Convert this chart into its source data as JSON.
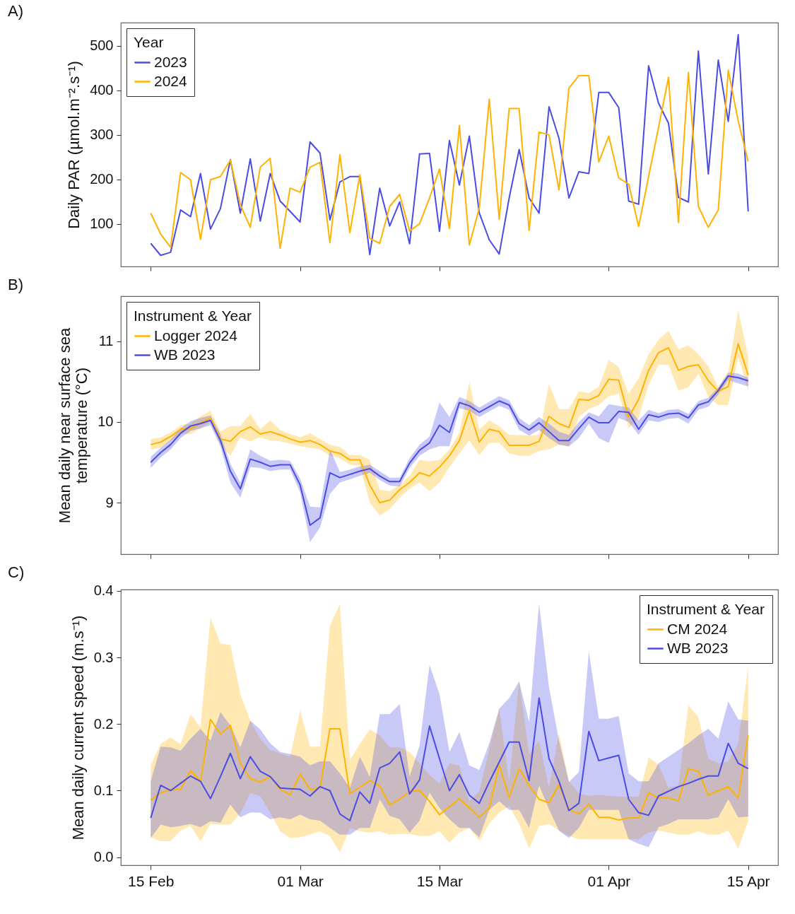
{
  "chart_data": [
    {
      "type": "line",
      "title": "A)",
      "ylabel": "Daily PAR (µmol.m⁻².s⁻¹)",
      "legend_title": "Year",
      "legend": "top left",
      "tick_labels": "y",
      "x": [
        "--02-15",
        "--02-16",
        "--02-17",
        "--02-18",
        "--02-19",
        "--02-20",
        "--02-21",
        "--02-22",
        "--02-23",
        "--02-24",
        "--02-25",
        "--02-26",
        "--02-27",
        "--02-28",
        "--02-29",
        "--03-01",
        "--03-02",
        "--03-03",
        "--03-04",
        "--03-05",
        "--03-06",
        "--03-07",
        "--03-08",
        "--03-09",
        "--03-10",
        "--03-11",
        "--03-12",
        "--03-13",
        "--03-14",
        "--03-15",
        "--03-16",
        "--03-17",
        "--03-18",
        "--03-19",
        "--03-20",
        "--03-21",
        "--03-22",
        "--03-23",
        "--03-24",
        "--03-25",
        "--03-26",
        "--03-27",
        "--03-28",
        "--03-29",
        "--03-30",
        "--03-31",
        "--04-01",
        "--04-02",
        "--04-03",
        "--04-04",
        "--04-05",
        "--04-06",
        "--04-07",
        "--04-08",
        "--04-09",
        "--04-10",
        "--04-11",
        "--04-12",
        "--04-13",
        "--04-14",
        "--04-15"
      ],
      "xlim": [
        "--02-12",
        "--04-18"
      ],
      "xticks": [
        {
          "value": "--02-15",
          "label": "15 Feb"
        },
        {
          "value": "--03-01",
          "label": "01 Mar"
        },
        {
          "value": "--03-15",
          "label": "15 Mar"
        },
        {
          "value": "--04-01",
          "label": "01 Apr"
        },
        {
          "value": "--04-15",
          "label": "15 Apr"
        }
      ],
      "ylim": [
        4,
        552
      ],
      "yticks": [
        100,
        200,
        300,
        400,
        500
      ],
      "series": [
        {
          "name": "2023",
          "color": "#4b4be6",
          "values": [
            56,
            29,
            36,
            131,
            116,
            213,
            88,
            134,
            244,
            124,
            246,
            106,
            213,
            151,
            128,
            104,
            284,
            259,
            109,
            194,
            206,
            206,
            31,
            180,
            95,
            149,
            55,
            257,
            258,
            83,
            287,
            187,
            297,
            124,
            64,
            32,
            158,
            267,
            158,
            124,
            363,
            292,
            158,
            217,
            213,
            395,
            395,
            361,
            151,
            144,
            455,
            371,
            326,
            159,
            149,
            488,
            212,
            468,
            330,
            525,
            128
          ]
        },
        {
          "name": "2024",
          "color": "#ffb300",
          "values": [
            124,
            77,
            47,
            215,
            199,
            65,
            199,
            206,
            243,
            143,
            92,
            227,
            247,
            45,
            180,
            171,
            227,
            238,
            58,
            255,
            80,
            210,
            67,
            56,
            139,
            166,
            84,
            100,
            158,
            223,
            89,
            321,
            52,
            136,
            380,
            110,
            359,
            359,
            85,
            306,
            300,
            176,
            405,
            433,
            433,
            239,
            297,
            203,
            189,
            94,
            206,
            317,
            429,
            103,
            440,
            139,
            92,
            131,
            445,
            331,
            240
          ]
        }
      ]
    },
    {
      "type": "line",
      "title": "B)",
      "ylabel": "Mean daily near surface sea\ntemperature (°C)",
      "legend_title": "Instrument & Year",
      "legend": "top left",
      "tick_labels": "y",
      "x": [
        "--02-15",
        "--02-16",
        "--02-17",
        "--02-18",
        "--02-19",
        "--02-20",
        "--02-21",
        "--02-22",
        "--02-23",
        "--02-24",
        "--02-25",
        "--02-26",
        "--02-27",
        "--02-28",
        "--02-29",
        "--03-01",
        "--03-02",
        "--03-03",
        "--03-04",
        "--03-05",
        "--03-06",
        "--03-07",
        "--03-08",
        "--03-09",
        "--03-10",
        "--03-11",
        "--03-12",
        "--03-13",
        "--03-14",
        "--03-15",
        "--03-16",
        "--03-17",
        "--03-18",
        "--03-19",
        "--03-20",
        "--03-21",
        "--03-22",
        "--03-23",
        "--03-24",
        "--03-25",
        "--03-26",
        "--03-27",
        "--03-28",
        "--03-29",
        "--03-30",
        "--03-31",
        "--04-01",
        "--04-02",
        "--04-03",
        "--04-04",
        "--04-05",
        "--04-06",
        "--04-07",
        "--04-08",
        "--04-09",
        "--04-10",
        "--04-11",
        "--04-12",
        "--04-13",
        "--04-14",
        "--04-15"
      ],
      "xlim": [
        "--02-12",
        "--04-18"
      ],
      "xticks": [
        {
          "value": "--02-15",
          "label": "15 Feb"
        },
        {
          "value": "--03-01",
          "label": "01 Mar"
        },
        {
          "value": "--03-15",
          "label": "15 Mar"
        },
        {
          "value": "--04-01",
          "label": "01 Apr"
        },
        {
          "value": "--04-15",
          "label": "15 Apr"
        }
      ],
      "ylim": [
        8.36,
        11.56
      ],
      "yticks": [
        9,
        10,
        11
      ],
      "series": [
        {
          "name": "Logger 2024",
          "color": "#ffb300",
          "values": [
            9.72,
            9.75,
            9.82,
            9.91,
            9.92,
            9.99,
            10.05,
            9.79,
            9.76,
            9.88,
            9.94,
            9.85,
            9.88,
            9.84,
            9.79,
            9.75,
            9.77,
            9.72,
            9.64,
            9.61,
            9.53,
            9.53,
            9.22,
            9.0,
            9.03,
            9.16,
            9.25,
            9.37,
            9.33,
            9.44,
            9.58,
            9.77,
            10.14,
            9.75,
            9.91,
            9.88,
            9.71,
            9.71,
            9.71,
            9.76,
            10.07,
            9.98,
            9.93,
            10.28,
            10.27,
            10.33,
            10.53,
            10.52,
            10.06,
            10.28,
            10.64,
            10.86,
            10.92,
            10.64,
            10.69,
            10.71,
            10.51,
            10.38,
            10.44,
            10.97,
            10.58
          ],
          "upper": [
            9.79,
            9.81,
            9.87,
            9.96,
            9.98,
            10.07,
            10.14,
            9.88,
            9.95,
            9.95,
            10.1,
            9.91,
            10.02,
            9.9,
            9.85,
            9.81,
            9.86,
            9.79,
            9.72,
            9.69,
            9.59,
            9.59,
            9.53,
            9.16,
            9.14,
            9.22,
            9.33,
            9.53,
            9.51,
            9.53,
            9.66,
            9.87,
            10.5,
            9.91,
            10.02,
            9.95,
            9.84,
            9.84,
            9.83,
            9.84,
            10.47,
            10.16,
            10.16,
            10.38,
            10.36,
            10.44,
            10.77,
            10.68,
            10.35,
            10.54,
            10.84,
            11.02,
            11.13,
            10.9,
            10.95,
            10.84,
            10.69,
            10.43,
            10.62,
            11.39,
            10.81
          ],
          "lower": [
            9.66,
            9.68,
            9.76,
            9.85,
            9.85,
            9.92,
            10.0,
            9.72,
            9.58,
            9.81,
            9.76,
            9.81,
            9.77,
            9.76,
            9.73,
            9.7,
            9.68,
            9.66,
            9.58,
            9.55,
            9.47,
            9.46,
            9.0,
            8.84,
            8.92,
            9.06,
            9.17,
            9.25,
            9.14,
            9.25,
            9.44,
            9.61,
            9.77,
            9.59,
            9.74,
            9.74,
            9.61,
            9.58,
            9.58,
            9.64,
            9.66,
            9.72,
            9.69,
            10.06,
            10.16,
            10.21,
            10.32,
            10.35,
            9.92,
            10.05,
            10.46,
            10.71,
            10.71,
            10.39,
            10.43,
            10.6,
            10.31,
            10.21,
            10.21,
            10.81,
            10.39
          ]
        },
        {
          "name": "WB 2023",
          "color": "#4b4be6",
          "values": [
            9.5,
            9.62,
            9.72,
            9.86,
            9.95,
            9.98,
            10.02,
            9.77,
            9.39,
            9.17,
            9.54,
            9.5,
            9.45,
            9.47,
            9.47,
            9.22,
            8.72,
            8.81,
            9.37,
            9.31,
            9.35,
            9.39,
            9.42,
            9.33,
            9.26,
            9.26,
            9.49,
            9.65,
            9.74,
            9.96,
            9.87,
            10.24,
            10.2,
            10.12,
            10.19,
            10.26,
            10.21,
            9.98,
            9.9,
            9.99,
            9.88,
            9.77,
            9.77,
            9.92,
            10.06,
            9.99,
            9.99,
            10.13,
            10.12,
            9.91,
            10.09,
            10.06,
            10.1,
            10.11,
            10.05,
            10.21,
            10.25,
            10.39,
            10.57,
            10.55,
            10.51
          ],
          "upper": [
            9.57,
            9.68,
            9.78,
            9.92,
            10.01,
            10.05,
            10.08,
            9.85,
            9.48,
            9.25,
            9.66,
            9.58,
            9.52,
            9.53,
            9.52,
            9.3,
            8.95,
            8.94,
            9.66,
            9.38,
            9.41,
            9.45,
            9.47,
            9.39,
            9.31,
            9.31,
            9.55,
            9.72,
            9.82,
            10.24,
            10.06,
            10.31,
            10.26,
            10.18,
            10.25,
            10.32,
            10.27,
            10.05,
            9.96,
            10.06,
            9.98,
            9.88,
            9.84,
            10.0,
            10.12,
            10.07,
            10.22,
            10.2,
            10.18,
            10.02,
            10.15,
            10.11,
            10.15,
            10.16,
            10.1,
            10.26,
            10.3,
            10.43,
            10.61,
            10.6,
            10.55
          ],
          "lower": [
            9.43,
            9.56,
            9.66,
            9.8,
            9.89,
            9.92,
            9.96,
            9.7,
            9.25,
            9.06,
            9.44,
            9.43,
            9.39,
            9.41,
            9.41,
            9.13,
            8.51,
            8.69,
            9.11,
            9.25,
            9.29,
            9.33,
            9.37,
            9.28,
            9.21,
            9.2,
            9.43,
            9.58,
            9.66,
            9.7,
            9.7,
            10.17,
            10.14,
            10.06,
            10.13,
            10.2,
            10.15,
            9.9,
            9.83,
            9.9,
            9.8,
            9.72,
            9.7,
            9.8,
            9.98,
            9.8,
            9.74,
            10.05,
            10.0,
            9.84,
            10.02,
            10.0,
            10.04,
            10.05,
            9.98,
            10.15,
            10.19,
            10.34,
            10.52,
            10.48,
            10.44
          ]
        }
      ]
    },
    {
      "type": "line",
      "title": "C)",
      "ylabel": "Mean daily current speed (m.s⁻¹)",
      "legend_title": "Instrument & Year",
      "legend": "top right",
      "x": [
        "--02-15",
        "--02-16",
        "--02-17",
        "--02-18",
        "--02-19",
        "--02-20",
        "--02-21",
        "--02-22",
        "--02-23",
        "--02-24",
        "--02-25",
        "--02-26",
        "--02-27",
        "--02-28",
        "--02-29",
        "--03-01",
        "--03-02",
        "--03-03",
        "--03-04",
        "--03-05",
        "--03-06",
        "--03-07",
        "--03-08",
        "--03-09",
        "--03-10",
        "--03-11",
        "--03-12",
        "--03-13",
        "--03-14",
        "--03-15",
        "--03-16",
        "--03-17",
        "--03-18",
        "--03-19",
        "--03-20",
        "--03-21",
        "--03-22",
        "--03-23",
        "--03-24",
        "--03-25",
        "--03-26",
        "--03-27",
        "--03-28",
        "--03-29",
        "--03-30",
        "--03-31",
        "--04-01",
        "--04-02",
        "--04-03",
        "--04-04",
        "--04-05",
        "--04-06",
        "--04-07",
        "--04-08",
        "--04-09",
        "--04-10",
        "--04-11",
        "--04-12",
        "--04-13",
        "--04-14",
        "--04-15"
      ],
      "xlim": [
        "--02-12",
        "--04-18"
      ],
      "xticks": [
        {
          "value": "--02-15",
          "label": "15 Feb"
        },
        {
          "value": "--03-01",
          "label": "01 Mar"
        },
        {
          "value": "--03-15",
          "label": "15 Mar"
        },
        {
          "value": "--04-01",
          "label": "01 Apr"
        },
        {
          "value": "--04-15",
          "label": "15 Apr"
        }
      ],
      "ylim": [
        -0.012,
        0.402
      ],
      "yticks": [
        {
          "value": 0,
          "label": "0.0"
        },
        0.1,
        0.2,
        0.3,
        0.4
      ],
      "series": [
        {
          "name": "CM 2024",
          "color": "#ffb300",
          "values": [
            0.086,
            0.097,
            0.101,
            0.102,
            0.13,
            0.114,
            0.207,
            0.185,
            0.198,
            0.141,
            0.118,
            0.113,
            0.121,
            0.102,
            0.094,
            0.125,
            0.102,
            0.104,
            0.193,
            0.193,
            0.096,
            0.105,
            0.115,
            0.107,
            0.079,
            0.087,
            0.099,
            0.1,
            0.084,
            0.064,
            0.076,
            0.088,
            0.074,
            0.06,
            0.074,
            0.138,
            0.09,
            0.133,
            0.108,
            0.087,
            0.082,
            0.109,
            0.072,
            0.065,
            0.08,
            0.06,
            0.06,
            0.056,
            0.059,
            0.059,
            0.097,
            0.089,
            0.089,
            0.085,
            0.133,
            0.129,
            0.093,
            0.1,
            0.106,
            0.089,
            0.183
          ],
          "upper": [
            0.138,
            0.17,
            0.18,
            0.17,
            0.215,
            0.195,
            0.36,
            0.321,
            0.319,
            0.245,
            0.205,
            0.178,
            0.161,
            0.156,
            0.151,
            0.22,
            0.166,
            0.166,
            0.348,
            0.38,
            0.146,
            0.17,
            0.192,
            0.183,
            0.165,
            0.165,
            0.158,
            0.141,
            0.124,
            0.111,
            0.141,
            0.138,
            0.084,
            0.099,
            0.163,
            0.223,
            0.114,
            0.265,
            0.155,
            0.175,
            0.104,
            0.186,
            0.114,
            0.096,
            0.092,
            0.094,
            0.092,
            0.091,
            0.091,
            0.091,
            0.15,
            0.139,
            0.104,
            0.108,
            0.228,
            0.21,
            0.148,
            0.141,
            0.144,
            0.171,
            0.286
          ],
          "lower": [
            0.03,
            0.024,
            0.024,
            0.04,
            0.047,
            0.024,
            0.05,
            0.049,
            0.049,
            0.066,
            0.096,
            0.092,
            0.067,
            0.039,
            0.029,
            0.03,
            0.034,
            0.039,
            0.032,
            0.007,
            0.044,
            0.039,
            0.037,
            0.039,
            0.034,
            0.035,
            0.035,
            0.032,
            0.032,
            0.039,
            0.022,
            0.037,
            0.044,
            0.025,
            0.05,
            0.067,
            0.077,
            0.05,
            0.013,
            0.047,
            0.05,
            0.04,
            0.032,
            0.027,
            0.027,
            0.027,
            0.027,
            0.027,
            0.027,
            0.027,
            0.037,
            0.04,
            0.037,
            0.034,
            0.034,
            0.039,
            0.034,
            0.034,
            0.04,
            0.013,
            0.054
          ]
        },
        {
          "name": "WB 2023",
          "color": "#4b4be6",
          "values": [
            0.059,
            0.108,
            0.1,
            0.111,
            0.122,
            0.114,
            0.088,
            0.121,
            0.156,
            0.118,
            0.151,
            0.129,
            0.121,
            0.104,
            0.103,
            0.102,
            0.092,
            0.106,
            0.1,
            0.065,
            0.055,
            0.098,
            0.081,
            0.134,
            0.141,
            0.158,
            0.095,
            0.116,
            0.197,
            0.148,
            0.1,
            0.124,
            0.093,
            0.081,
            0.113,
            0.143,
            0.173,
            0.173,
            0.115,
            0.239,
            0.148,
            0.114,
            0.07,
            0.081,
            0.189,
            0.145,
            0.149,
            0.153,
            0.087,
            0.067,
            0.063,
            0.092,
            0.099,
            0.106,
            0.111,
            0.117,
            0.122,
            0.122,
            0.171,
            0.141,
            0.133
          ],
          "upper": [
            0.114,
            0.166,
            0.165,
            0.16,
            0.178,
            0.193,
            0.175,
            0.218,
            0.198,
            0.165,
            0.205,
            0.192,
            0.171,
            0.158,
            0.155,
            0.151,
            0.138,
            0.144,
            0.144,
            0.126,
            0.104,
            0.151,
            0.121,
            0.215,
            0.215,
            0.23,
            0.121,
            0.168,
            0.289,
            0.245,
            0.158,
            0.188,
            0.138,
            0.131,
            0.171,
            0.223,
            0.239,
            0.264,
            0.203,
            0.381,
            0.255,
            0.175,
            0.113,
            0.128,
            0.309,
            0.208,
            0.208,
            0.212,
            0.126,
            0.114,
            0.114,
            0.141,
            0.151,
            0.161,
            0.171,
            0.183,
            0.193,
            0.178,
            0.234,
            0.207,
            0.205
          ],
          "lower": [
            0.029,
            0.049,
            0.045,
            0.047,
            0.05,
            0.045,
            0.054,
            0.052,
            0.079,
            0.06,
            0.067,
            0.067,
            0.057,
            0.06,
            0.057,
            0.064,
            0.057,
            0.055,
            0.044,
            0.034,
            0.034,
            0.044,
            0.044,
            0.087,
            0.062,
            0.057,
            0.037,
            0.055,
            0.097,
            0.074,
            0.057,
            0.044,
            0.044,
            0.03,
            0.071,
            0.084,
            0.071,
            0.071,
            0.044,
            0.108,
            0.072,
            0.04,
            0.029,
            0.044,
            0.071,
            0.071,
            0.071,
            0.071,
            0.027,
            0.02,
            0.015,
            0.045,
            0.05,
            0.057,
            0.057,
            0.057,
            0.057,
            0.06,
            0.087,
            0.06,
            0.061
          ]
        }
      ]
    }
  ]
}
